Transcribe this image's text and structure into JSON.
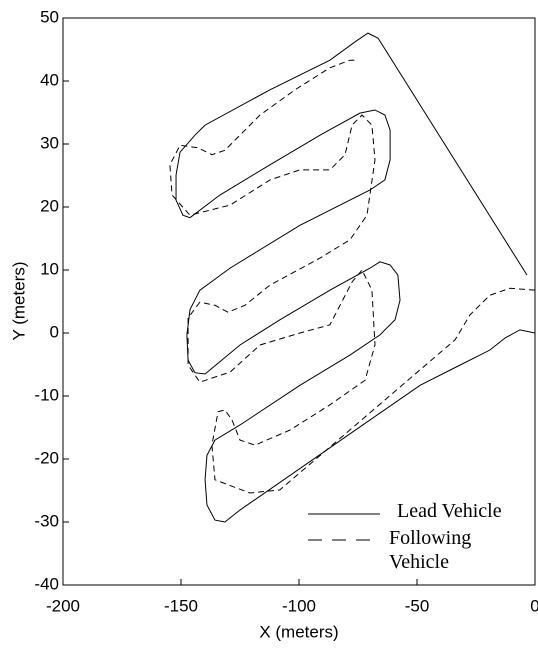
{
  "chart_data": {
    "type": "line",
    "xlabel": "X (meters)",
    "ylabel": "Y (meters)",
    "xlim": [
      -200,
      0
    ],
    "xticks": [
      -200,
      -150,
      -100,
      -50,
      0
    ],
    "ylim": [
      -40,
      50
    ],
    "yticks": [
      -40,
      -30,
      -20,
      -10,
      0,
      10,
      20,
      30,
      40,
      50
    ],
    "series": [
      {
        "name": "Lead Vehicle",
        "color": "#000000",
        "linestyle": "solid",
        "x": [
          0,
          -6.4,
          -12.7,
          -19.1,
          -31.8,
          -48.7,
          -125,
          -131.4,
          -135.6,
          -139,
          -139.8,
          -139,
          -135.6,
          -125,
          -99.6,
          -78.4,
          -65.7,
          -59.3,
          -57.2,
          -58.1,
          -61.4,
          -65.7,
          -69.9,
          -86.9,
          -108.1,
          -125,
          -139.8,
          -144.1,
          -147,
          -147.5,
          -146.2,
          -142,
          -129.2,
          -99.6,
          -69.9,
          -63.6,
          -61.4,
          -61.4,
          -63.6,
          -67.8,
          -74.2,
          -91.1,
          -112.3,
          -133.5,
          -146.2,
          -149.2,
          -152.1,
          -152.1,
          -150.4,
          -144.1,
          -139.8,
          -112.3,
          -86.9,
          -76.3,
          -70.8,
          -66.5,
          -3.4
        ],
        "values": [
          0,
          0.5,
          -0.8,
          -2.7,
          -5.1,
          -8.3,
          -28.1,
          -30,
          -29.7,
          -27.3,
          -23.3,
          -19.4,
          -17,
          -14.6,
          -8.3,
          -3.5,
          -0.3,
          2.1,
          5.2,
          9.2,
          10.8,
          11.3,
          10.3,
          6.8,
          2.1,
          -1.9,
          -6.5,
          -6.3,
          -4.3,
          -0.3,
          3.7,
          6.8,
          10.3,
          17.1,
          22.7,
          24.3,
          27.5,
          32.2,
          34.6,
          35.4,
          34.9,
          31.4,
          26.7,
          21.9,
          18.3,
          18.7,
          21.1,
          25.1,
          28.7,
          31.4,
          33,
          38.6,
          43.3,
          46.2,
          47.6,
          46.8,
          9.2
        ]
      },
      {
        "name": "Following Vehicle",
        "color": "#000000",
        "linestyle": "dashed",
        "x": [
          0,
          -10.6,
          -19.1,
          -27.5,
          -33.9,
          -108.1,
          -120.8,
          -135.6,
          -136.9,
          -134.3,
          -131.4,
          -128.4,
          -125,
          -118.6,
          -103.8,
          -86.9,
          -72,
          -67.8,
          -69.1,
          -73.3,
          -77.5,
          -86.9,
          -99.6,
          -116.5,
          -129.2,
          -142,
          -147,
          -147,
          -142,
          -135.6,
          -130.1,
          -122.9,
          -112.3,
          -91.1,
          -78.4,
          -71.2,
          -67.8,
          -69.1,
          -73.3,
          -77.5,
          -80.5,
          -86.9,
          -99.6,
          -112.3,
          -129.2,
          -146.2,
          -153.8,
          -154.7,
          -150.4,
          -142.8,
          -136.9,
          -131.4,
          -116.5,
          -101.7,
          -86.9,
          -78.4,
          -75
        ],
        "values": [
          6.8,
          7.1,
          6,
          2.9,
          -1.1,
          -24.9,
          -25.4,
          -23.3,
          -17.8,
          -12.5,
          -12.2,
          -13.8,
          -17,
          -17.8,
          -15.4,
          -11.4,
          -7.5,
          -1.9,
          6.8,
          10,
          8.1,
          1.3,
          0,
          -1.9,
          -6.2,
          -7.8,
          -5.1,
          2.4,
          4.9,
          4.4,
          3.3,
          4.4,
          7.6,
          11.9,
          14.8,
          18.7,
          27.5,
          33,
          34.6,
          33,
          28.3,
          25.9,
          25.9,
          24.3,
          20.3,
          18.7,
          21.9,
          26.7,
          29.8,
          29.4,
          28.3,
          29,
          34.6,
          38.6,
          42.1,
          43.3,
          43.3
        ]
      }
    ]
  }
}
